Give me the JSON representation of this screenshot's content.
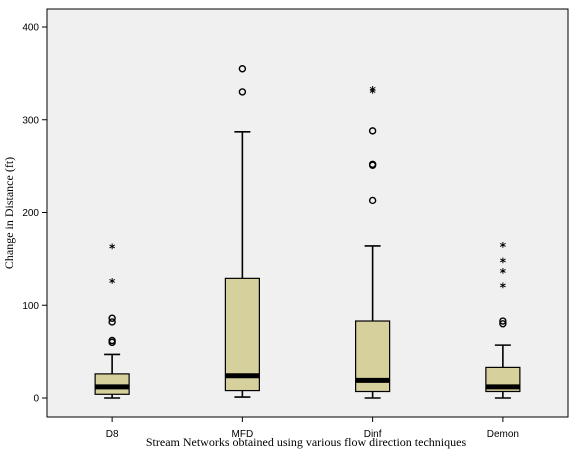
{
  "chart_data": {
    "type": "box",
    "xlabel": "Stream Networks obtained using various flow direction techniques",
    "ylabel": "Change in Distance (ft)",
    "ylim": [
      -20,
      415
    ],
    "yticks": [
      0,
      100,
      200,
      300,
      400
    ],
    "grid": false,
    "colors": {
      "box_fill": "#d6d09c",
      "plot_bg": "#f0f0f0",
      "median": "#000000"
    },
    "categories": [
      "D8",
      "MFD",
      "Dinf",
      "Demon"
    ],
    "boxes": [
      {
        "category": "D8",
        "whisker_low": 0,
        "q1": 4,
        "median": 12,
        "q3": 26,
        "whisker_high": 47,
        "outliers_circle": [
          60,
          62,
          82,
          86
        ],
        "outliers_star": [
          125,
          162
        ]
      },
      {
        "category": "MFD",
        "whisker_low": 1,
        "q1": 8,
        "median": 24,
        "q3": 129,
        "whisker_high": 287,
        "outliers_circle": [
          330,
          355
        ],
        "outliers_star": []
      },
      {
        "category": "Dinf",
        "whisker_low": 0,
        "q1": 7,
        "median": 19,
        "q3": 83,
        "whisker_high": 164,
        "outliers_circle": [
          213,
          251,
          252,
          288
        ],
        "outliers_star": [
          330,
          332
        ]
      },
      {
        "category": "Demon",
        "whisker_low": 0,
        "q1": 7,
        "median": 12,
        "q3": 33,
        "whisker_high": 57,
        "outliers_circle": [
          80,
          83
        ],
        "outliers_star": [
          120,
          136,
          147,
          164
        ]
      }
    ]
  }
}
